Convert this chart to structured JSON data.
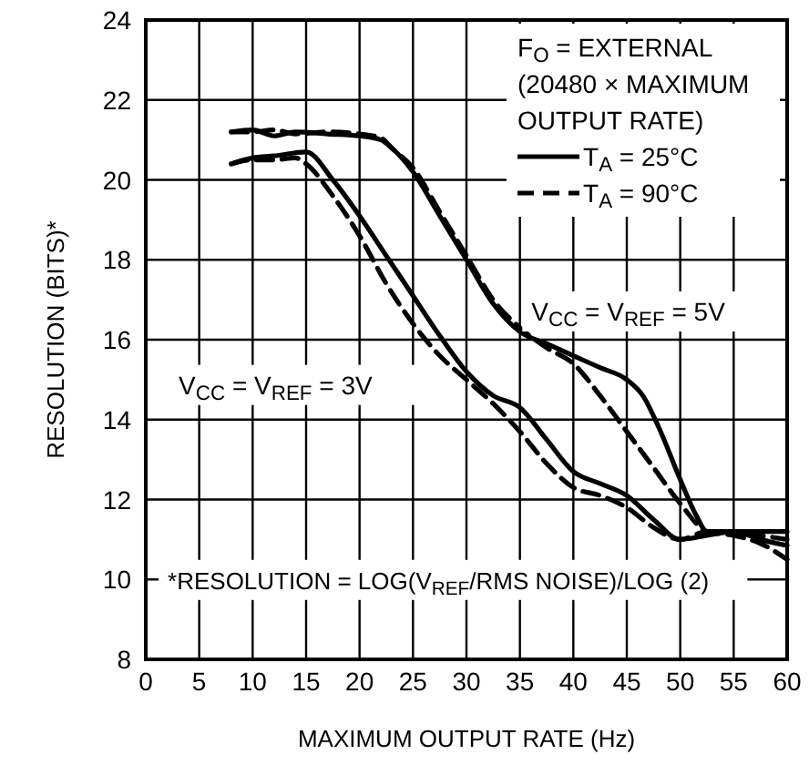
{
  "chart_data": {
    "type": "line",
    "xlabel": "MAXIMUM OUTPUT RATE (Hz)",
    "ylabel": "RESOLUTION (BITS)*",
    "legend_title": "F$_{O}$ = EXTERNAL (20480 × MAXIMUM OUTPUT RATE)",
    "xlim": [
      0,
      60
    ],
    "ylim": [
      8,
      24
    ],
    "xticks": [
      0,
      5,
      10,
      15,
      20,
      25,
      30,
      35,
      40,
      45,
      50,
      55,
      60
    ],
    "yticks": [
      8,
      10,
      12,
      14,
      16,
      18,
      20,
      22,
      24
    ],
    "grid": true,
    "legend": "top right",
    "series": [
      {
        "name": "T$_{A}$ = 25°C",
        "color": "#000000",
        "line_style": "solid",
        "x": [
          8,
          10,
          12,
          14,
          17,
          20,
          22,
          23,
          25,
          27.5,
          30,
          32.5,
          35,
          37.5,
          40,
          42.5,
          45,
          46.5,
          48,
          50,
          51.5,
          52.5,
          55,
          57.5,
          60
        ],
        "values": [
          21.2,
          21.25,
          21.1,
          21.2,
          21.15,
          21.1,
          21.0,
          20.8,
          20.2,
          19.1,
          18.0,
          16.9,
          16.2,
          15.9,
          15.6,
          15.3,
          15.0,
          14.6,
          13.8,
          12.5,
          11.6,
          11.2,
          11.2,
          11.2,
          11.2
        ]
      },
      {
        "name": "T$_{A}$ = 90°C",
        "color": "#000000",
        "line_style": "dashed",
        "x": [
          8,
          10,
          12,
          14,
          17,
          20,
          22,
          23,
          25,
          27.5,
          30,
          32.5,
          35,
          37.5,
          40,
          42.5,
          45,
          47.5,
          50,
          52.5,
          55,
          57.5,
          60
        ],
        "values": [
          21.2,
          21.2,
          21.25,
          21.15,
          21.2,
          21.15,
          21.05,
          20.8,
          20.3,
          19.2,
          18.1,
          17.0,
          16.3,
          15.8,
          15.4,
          14.6,
          13.7,
          12.8,
          11.9,
          11.2,
          11.1,
          10.9,
          10.5
        ]
      },
      {
        "color": "#000000",
        "line_style": "solid",
        "x": [
          8,
          10,
          12,
          15,
          17.5,
          20,
          22.5,
          25,
          27.5,
          30,
          32.5,
          35,
          37.5,
          40,
          42.5,
          45,
          47.5,
          50,
          52.5,
          55,
          57.5,
          60
        ],
        "values": [
          20.4,
          20.55,
          20.6,
          20.7,
          20.0,
          19.1,
          18.1,
          17.1,
          16.1,
          15.2,
          14.6,
          14.3,
          13.5,
          12.7,
          12.4,
          12.1,
          11.5,
          11.0,
          11.1,
          11.2,
          11.0,
          10.85
        ]
      },
      {
        "color": "#000000",
        "line_style": "dashed",
        "x": [
          8,
          10,
          12,
          14,
          15,
          17.5,
          20,
          22.5,
          25,
          27.5,
          30,
          32.5,
          35,
          37.5,
          40,
          42.5,
          45,
          47.5,
          50,
          52.5,
          55,
          57.5,
          60
        ],
        "values": [
          20.4,
          20.5,
          20.5,
          20.55,
          20.4,
          19.6,
          18.6,
          17.4,
          16.4,
          15.6,
          15.0,
          14.4,
          13.7,
          12.9,
          12.3,
          12.1,
          11.8,
          11.3,
          11.0,
          11.2,
          11.2,
          11.1,
          11.0
        ]
      }
    ],
    "annotations": [
      "V$_{CC}$ = V$_{REF}$ = 5V",
      "V$_{CC}$ = V$_{REF}$ = 3V",
      "*RESOLUTION = LOG(V$_{REF}$/RMS NOISE)/LOG (2)"
    ]
  }
}
